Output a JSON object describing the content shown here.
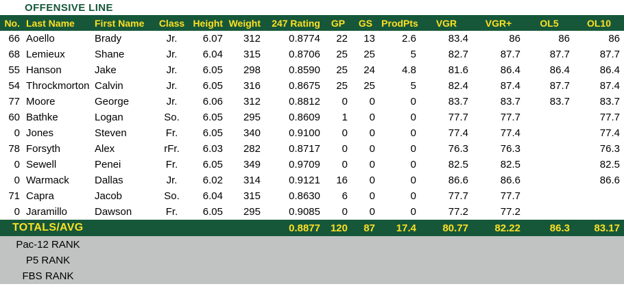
{
  "title": "OFFENSIVE LINE",
  "colors": {
    "green": "#16573A",
    "yellow": "#FDE023",
    "gray": "#C1C3C3",
    "text": "#000000"
  },
  "table": {
    "columns": [
      "No.",
      "Last Name",
      "First Name",
      "Class",
      "Height",
      "Weight",
      "247 Rating",
      "GP",
      "GS",
      "ProdPts",
      "VGR",
      "VGR+",
      "OL5",
      "OL10"
    ],
    "rows": [
      [
        "66",
        "Aoello",
        "Brady",
        "Jr.",
        "6.07",
        "312",
        "0.8774",
        "22",
        "13",
        "2.6",
        "83.4",
        "86",
        "86",
        "86"
      ],
      [
        "68",
        "Lemieux",
        "Shane",
        "Jr.",
        "6.04",
        "315",
        "0.8706",
        "25",
        "25",
        "5",
        "82.7",
        "87.7",
        "87.7",
        "87.7"
      ],
      [
        "55",
        "Hanson",
        "Jake",
        "Jr.",
        "6.05",
        "298",
        "0.8590",
        "25",
        "24",
        "4.8",
        "81.6",
        "86.4",
        "86.4",
        "86.4"
      ],
      [
        "54",
        "Throckmorton",
        "Calvin",
        "Jr.",
        "6.05",
        "316",
        "0.8675",
        "25",
        "25",
        "5",
        "82.4",
        "87.4",
        "87.7",
        "87.4"
      ],
      [
        "77",
        "Moore",
        "George",
        "Jr.",
        "6.06",
        "312",
        "0.8812",
        "0",
        "0",
        "0",
        "83.7",
        "83.7",
        "83.7",
        "83.7"
      ],
      [
        "60",
        "Bathke",
        "Logan",
        "So.",
        "6.05",
        "295",
        "0.8609",
        "1",
        "0",
        "0",
        "77.7",
        "77.7",
        "",
        "77.7"
      ],
      [
        "0",
        "Jones",
        "Steven",
        "Fr.",
        "6.05",
        "340",
        "0.9100",
        "0",
        "0",
        "0",
        "77.4",
        "77.4",
        "",
        "77.4"
      ],
      [
        "78",
        "Forsyth",
        "Alex",
        "rFr.",
        "6.03",
        "282",
        "0.8717",
        "0",
        "0",
        "0",
        "76.3",
        "76.3",
        "",
        "76.3"
      ],
      [
        "0",
        "Sewell",
        "Penei",
        "Fr.",
        "6.05",
        "349",
        "0.9709",
        "0",
        "0",
        "0",
        "82.5",
        "82.5",
        "",
        "82.5"
      ],
      [
        "0",
        "Warmack",
        "Dallas",
        "Jr.",
        "6.02",
        "314",
        "0.9121",
        "16",
        "0",
        "0",
        "86.6",
        "86.6",
        "",
        "86.6"
      ],
      [
        "71",
        "Capra",
        "Jacob",
        "So.",
        "6.04",
        "315",
        "0.8630",
        "6",
        "0",
        "0",
        "77.7",
        "77.7",
        "",
        ""
      ],
      [
        "0",
        "Jaramillo",
        "Dawson",
        "Fr.",
        "6.05",
        "295",
        "0.9085",
        "0",
        "0",
        "0",
        "77.2",
        "77.2",
        "",
        ""
      ]
    ],
    "totals": {
      "label": "TOTALS/AVG",
      "rating": "0.8877",
      "gp": "120",
      "gs": "87",
      "prodpts": "17.4",
      "vgr": "80.77",
      "vgr_plus": "82.22",
      "ol5": "86.3",
      "ol10": "83.17"
    }
  },
  "footer": {
    "ranks": [
      "Pac-12 RANK",
      "P5 RANK",
      "FBS RANK"
    ]
  }
}
